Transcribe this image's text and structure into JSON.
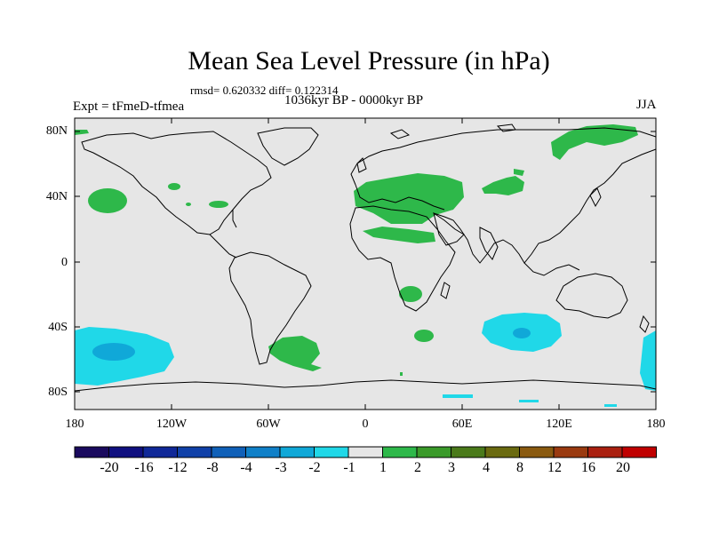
{
  "title": "Mean Sea Level Pressure (in hPa)",
  "stats": "rmsd= 0.620332  diff= 0.122314",
  "period": "1036kyr BP - 0000kyr BP",
  "experiment": "Expt = tFmeD-tfmea",
  "season": "JJA",
  "lat_ticks": [
    "80N",
    "40N",
    "0",
    "40S",
    "80S"
  ],
  "lon_ticks": [
    "180",
    "120W",
    "60W",
    "0",
    "60E",
    "120E",
    "180"
  ],
  "colorbar": {
    "labels": [
      "-20",
      "-16",
      "-12",
      "-8",
      "-4",
      "-3",
      "-2",
      "-1",
      "1",
      "2",
      "3",
      "4",
      "8",
      "12",
      "16",
      "20"
    ],
    "colors": [
      "#1a0a5e",
      "#101080",
      "#102898",
      "#1040a8",
      "#1060b8",
      "#1080c8",
      "#10a8d8",
      "#20d8e8",
      "#e6e6e6",
      "#2eb84a",
      "#3a9a2a",
      "#4a7a1a",
      "#6a6a10",
      "#8a5a10",
      "#9a3a10",
      "#aa2010",
      "#c00000"
    ]
  },
  "colors": {
    "background": "#e6e6e6",
    "positive": "#2eb84a",
    "negative_light": "#20d8e8",
    "negative_mid": "#10a8d8"
  }
}
